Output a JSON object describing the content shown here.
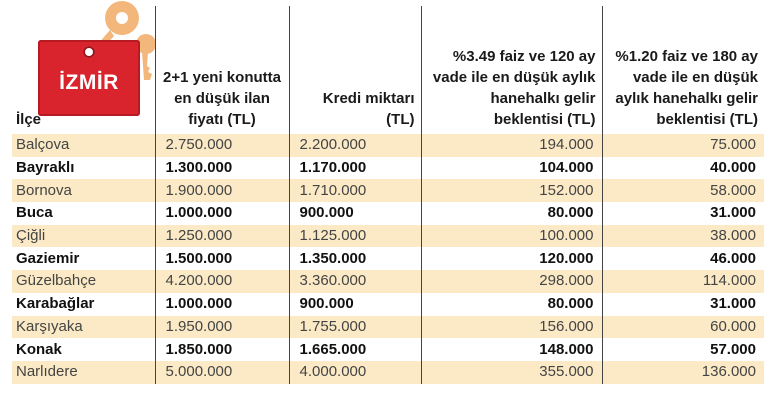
{
  "badge": {
    "label": "İZMİR",
    "icon": "key-tag-icon",
    "tag_color": "#d9232d",
    "key_color": "#f3b77c"
  },
  "table": {
    "headers": [
      "İlçe",
      "2+1 yeni konutta en düşük ilan fiyatı (TL)",
      "Kredi miktarı (TL)",
      "%3.49 faiz ve 120 ay vade ile en düşük aylık hanehalkı gelir beklentisi (TL)",
      "%1.20 faiz ve 180 ay vade ile en düşük aylık hanehalkı gelir beklentisi (TL)"
    ],
    "rows": [
      [
        "Balçova",
        "2.750.000",
        "2.200.000",
        "194.000",
        "75.000"
      ],
      [
        "Bayraklı",
        "1.300.000",
        "1.170.000",
        "104.000",
        "40.000"
      ],
      [
        "Bornova",
        "1.900.000",
        "1.710.000",
        "152.000",
        "58.000"
      ],
      [
        "Buca",
        "1.000.000",
        "900.000",
        "80.000",
        "31.000"
      ],
      [
        "Çiğli",
        "1.250.000",
        "1.125.000",
        "100.000",
        "38.000"
      ],
      [
        "Gaziemir",
        "1.500.000",
        "1.350.000",
        "120.000",
        "46.000"
      ],
      [
        "Güzelbahçe",
        "4.200.000",
        "3.360.000",
        "298.000",
        "114.000"
      ],
      [
        "Karabağlar",
        "1.000.000",
        "900.000",
        "80.000",
        "31.000"
      ],
      [
        "Karşıyaka",
        "1.950.000",
        "1.755.000",
        "156.000",
        "60.000"
      ],
      [
        "Konak",
        "1.850.000",
        "1.665.000",
        "148.000",
        "57.000"
      ],
      [
        "Narlıdere",
        "5.000.000",
        "4.000.000",
        "355.000",
        "136.000"
      ]
    ],
    "stripe_color": "#fbeac5"
  }
}
